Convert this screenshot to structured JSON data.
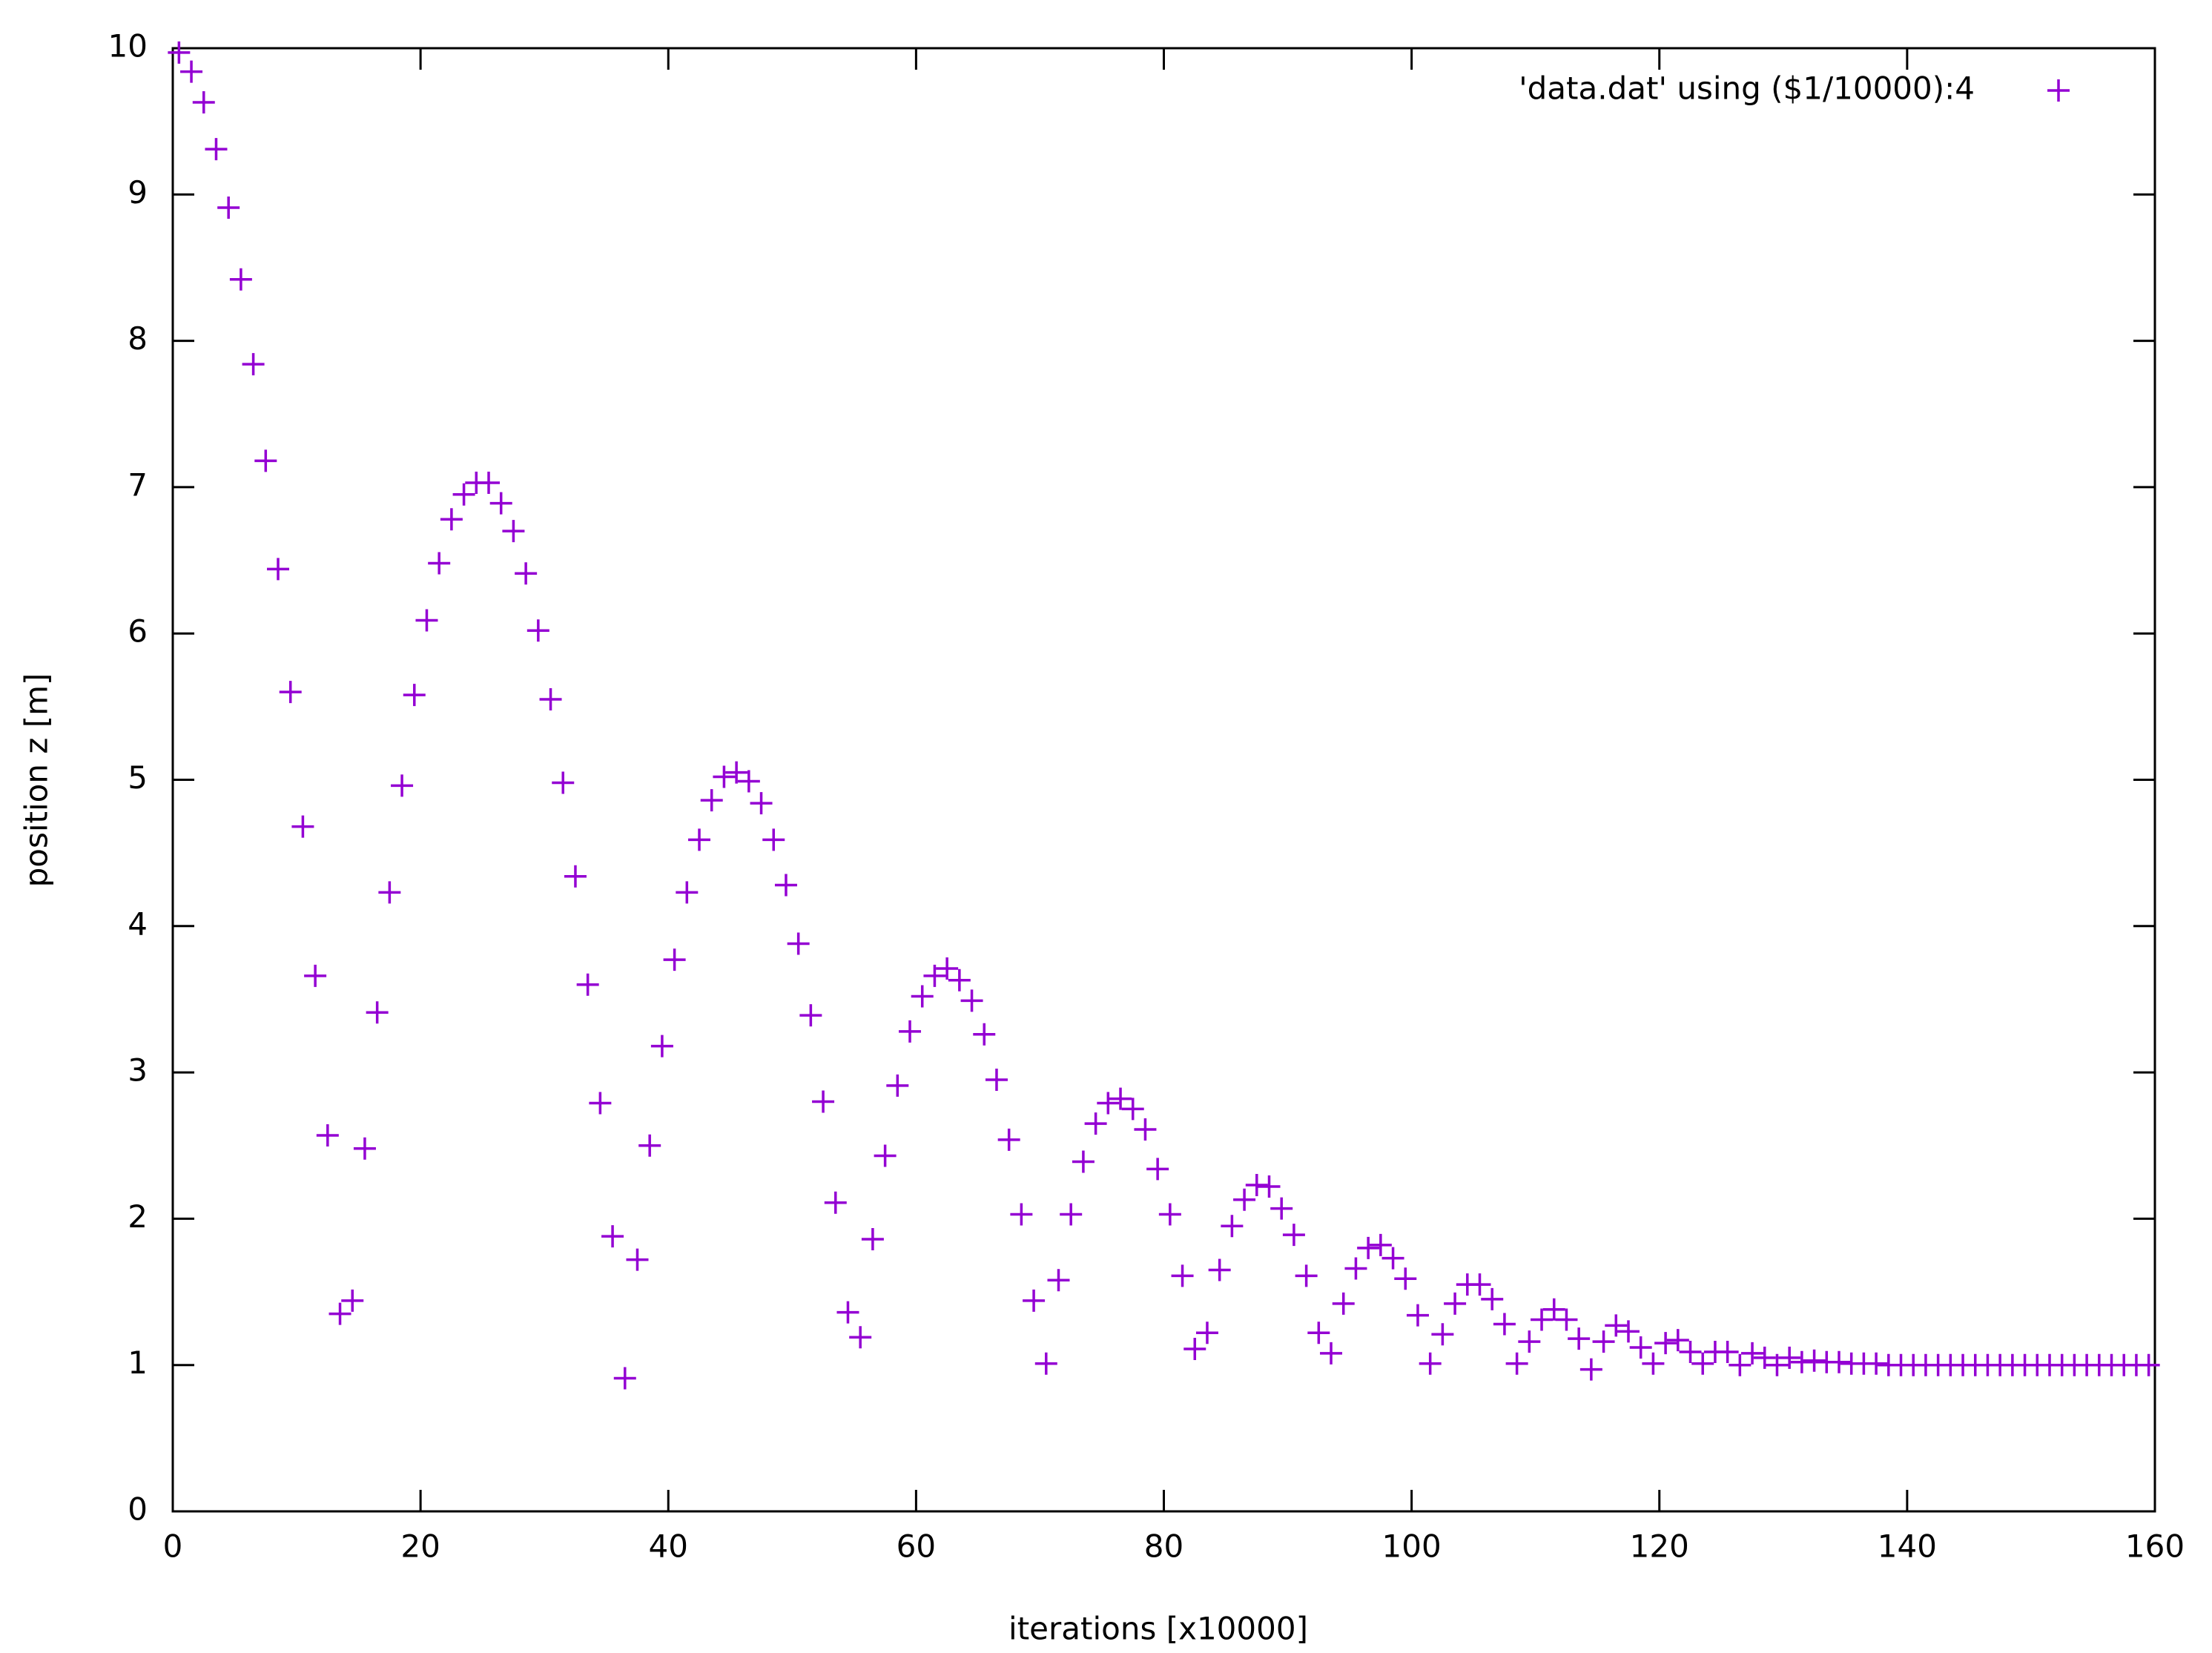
{
  "chart_data": {
    "type": "scatter",
    "xlabel": "iterations [x10000]",
    "ylabel": "position z [m]",
    "xlim": [
      0,
      160
    ],
    "ylim": [
      0,
      10
    ],
    "xticks": [
      0,
      20,
      40,
      60,
      80,
      100,
      120,
      140,
      160
    ],
    "yticks": [
      0,
      1,
      2,
      3,
      4,
      5,
      6,
      7,
      8,
      9,
      10
    ],
    "legend": "top-right",
    "x": [
      0.5,
      1.5,
      2.5,
      3.5,
      4.5,
      5.5,
      6.5,
      7.5,
      8.5,
      9.5,
      10.5,
      11.5,
      12.5,
      13.5,
      14.5,
      15.5,
      16.5,
      17.5,
      18.5,
      19.5,
      20.5,
      21.5,
      22.5,
      23.5,
      24.5,
      25.5,
      26.5,
      27.5,
      28.5,
      29.5,
      30.5,
      31.5,
      32.5,
      33.5,
      34.5,
      35.5,
      36.5,
      37.5,
      38.5,
      39.5,
      40.5,
      41.5,
      42.5,
      43.5,
      44.5,
      45.5,
      46.5,
      47.5,
      48.5,
      49.5,
      50.5,
      51.5,
      52.5,
      53.5,
      54.5,
      55.5,
      56.5,
      57.5,
      58.5,
      59.5,
      60.5,
      61.5,
      62.5,
      63.5,
      64.5,
      65.5,
      66.5,
      67.5,
      68.5,
      69.5,
      70.5,
      71.5,
      72.5,
      73.5,
      74.5,
      75.5,
      76.5,
      77.5,
      78.5,
      79.5,
      80.5,
      81.5,
      82.5,
      83.5,
      84.5,
      85.5,
      86.5,
      87.5,
      88.5,
      89.5,
      90.5,
      91.5,
      92.5,
      93.5,
      94.5,
      95.5,
      96.5,
      97.5,
      98.5,
      99.5,
      100.5,
      101.5,
      102.5,
      103.5,
      104.5,
      105.5,
      106.5,
      107.5,
      108.5,
      109.5,
      110.5,
      111.5,
      112.5,
      113.5,
      114.5,
      115.5,
      116.5,
      117.5,
      118.5,
      119.5,
      120.5,
      121.5,
      122.5,
      123.5,
      124.5,
      125.5,
      126.5,
      127.5,
      128.5,
      129.5,
      130.5,
      131.5,
      132.5,
      133.5,
      134.5,
      135.5,
      136.5,
      137.5,
      138.5,
      139.5,
      140.5,
      141.5,
      142.5,
      143.5,
      144.5,
      145.5,
      146.5,
      147.5,
      148.5,
      149.5,
      150.5,
      151.5,
      152.5,
      153.5,
      154.5,
      155.5,
      156.5,
      157.5,
      158.5,
      159.5
    ],
    "series": [
      {
        "name": "'data.dat' using ($1/10000):4",
        "color": "#9400d3",
        "values": [
          9.97,
          9.84,
          9.63,
          9.31,
          8.91,
          8.42,
          7.84,
          7.18,
          6.44,
          5.6,
          4.68,
          3.66,
          2.57,
          1.35,
          1.44,
          2.48,
          3.41,
          4.23,
          4.96,
          5.58,
          6.09,
          6.48,
          6.78,
          6.95,
          7.03,
          7.03,
          6.89,
          6.7,
          6.41,
          6.02,
          5.55,
          4.98,
          4.34,
          3.6,
          2.79,
          1.88,
          0.91,
          1.72,
          2.5,
          3.18,
          3.77,
          4.23,
          4.59,
          4.86,
          5.02,
          5.05,
          4.99,
          4.84,
          4.59,
          4.28,
          3.88,
          3.39,
          2.8,
          2.11,
          1.36,
          1.19,
          1.86,
          2.43,
          2.91,
          3.28,
          3.52,
          3.66,
          3.71,
          3.63,
          3.49,
          3.26,
          2.95,
          2.54,
          2.03,
          1.44,
          1.01,
          1.58,
          2.03,
          2.39,
          2.65,
          2.79,
          2.82,
          2.75,
          2.61,
          2.34,
          2.03,
          1.61,
          1.11,
          1.22,
          1.65,
          1.95,
          2.13,
          2.23,
          2.22,
          2.07,
          1.89,
          1.61,
          1.22,
          1.08,
          1.42,
          1.66,
          1.8,
          1.82,
          1.73,
          1.59,
          1.34,
          1.01,
          1.21,
          1.42,
          1.55,
          1.55,
          1.45,
          1.28,
          1.01,
          1.16,
          1.31,
          1.38,
          1.31,
          1.18,
          0.97,
          1.16,
          1.27,
          1.23,
          1.12,
          1.01,
          1.15,
          1.17,
          1.09,
          1.01,
          1.09,
          1.09,
          1.0,
          1.08,
          1.05,
          1.0,
          1.05,
          1.02,
          1.03,
          1.02,
          1.02,
          1.01,
          1.01,
          1.01,
          1.0,
          1.0,
          1.0,
          1.0,
          1.0,
          1.0,
          1.0,
          1.0,
          1.0,
          1.0,
          1.0,
          1.0,
          1.0,
          1.0,
          1.0,
          1.0,
          1.0,
          1.0,
          1.0,
          1.0,
          1.0,
          1.0
        ]
      }
    ]
  }
}
